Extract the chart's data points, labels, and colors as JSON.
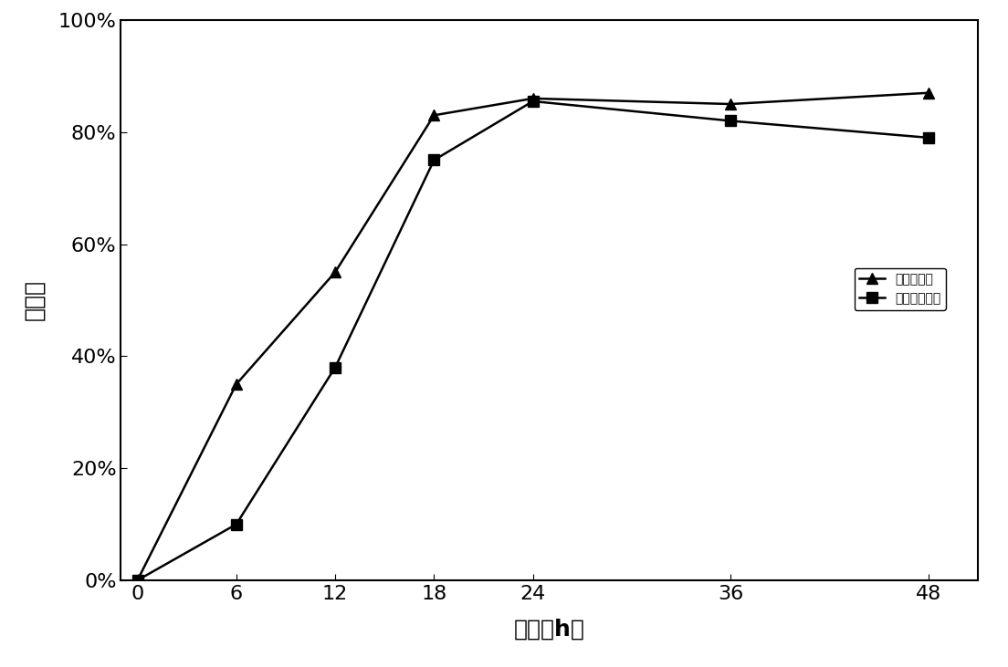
{
  "x": [
    0,
    6,
    12,
    18,
    24,
    36,
    48
  ],
  "ammonia_y": [
    0.0,
    0.35,
    0.55,
    0.83,
    0.86,
    0.85,
    0.87
  ],
  "phosphate_y": [
    0.0,
    0.1,
    0.38,
    0.75,
    0.855,
    0.82,
    0.79
  ],
  "xlabel": "时间（h）",
  "ylabel": "去除率",
  "legend_ammonia": "氨氮去除率",
  "legend_phosphate": "磷酸盐去除率",
  "ylim": [
    0.0,
    1.0
  ],
  "xlim": [
    -1,
    51
  ],
  "yticks": [
    0.0,
    0.2,
    0.4,
    0.6,
    0.8,
    1.0
  ],
  "xticks": [
    0,
    6,
    12,
    18,
    24,
    36,
    48
  ],
  "line_color": "#000000",
  "marker_triangle": "^",
  "marker_square": "s",
  "marker_size": 9,
  "line_width": 1.8,
  "background_color": "#ffffff",
  "plot_bg_color": "#ffffff",
  "label_fontsize": 18,
  "tick_fontsize": 16,
  "legend_fontsize": 16
}
